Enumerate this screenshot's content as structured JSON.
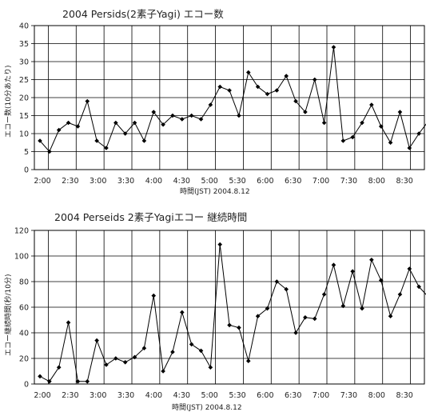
{
  "chart_data": [
    {
      "type": "line",
      "title": "2004 Persids(2素子Yagi) エコー数",
      "xlabel": "時間(JST) 2004.8.12",
      "ylabel": "エコー数(10分あたり)",
      "ylim": [
        0,
        40
      ],
      "yticks": [
        "0",
        "5",
        "10",
        "15",
        "20",
        "25",
        "30",
        "35",
        "40"
      ],
      "xticks": [
        "2:00",
        "2:30",
        "3:00",
        "3:30",
        "4:00",
        "4:30",
        "5:00",
        "5:30",
        "6:00",
        "6:30",
        "7:00",
        "7:30",
        "8:00",
        "8:30"
      ],
      "grid": true,
      "series": [
        {
          "values": [
            8,
            5,
            11,
            13,
            12,
            19,
            8,
            6,
            13,
            10,
            13,
            8,
            16,
            12.5,
            15,
            14,
            15,
            14,
            18,
            23,
            22,
            15,
            27,
            23,
            21,
            22,
            26,
            19,
            16,
            25,
            13,
            34,
            8,
            9,
            13,
            18,
            12,
            7.5,
            16,
            6,
            10,
            13.5
          ]
        }
      ]
    },
    {
      "type": "line",
      "title": "2004 Perseids 2素子Yagiエコー 継続時間",
      "xlabel": "時間(JST) 2004.8.12",
      "ylabel": "エコー継続時間(秒/10分)",
      "ylim": [
        0,
        120
      ],
      "yticks": [
        "0",
        "20",
        "40",
        "60",
        "80",
        "100",
        "120"
      ],
      "xticks": [
        "2:00",
        "2:30",
        "3:00",
        "3:30",
        "4:00",
        "4:30",
        "5:00",
        "5:30",
        "6:00",
        "6:30",
        "7:00",
        "7:30",
        "8:00",
        "8:30"
      ],
      "grid": true,
      "series": [
        {
          "values": [
            6,
            2,
            13,
            48,
            2,
            2,
            34,
            15,
            20,
            17,
            21,
            28,
            69,
            10,
            25,
            56,
            31,
            26,
            13,
            109,
            46,
            44,
            18,
            53,
            59,
            80,
            74,
            40,
            52,
            51,
            70,
            93,
            61,
            88,
            59,
            97,
            81,
            53,
            70,
            90,
            76,
            68
          ]
        }
      ]
    }
  ]
}
